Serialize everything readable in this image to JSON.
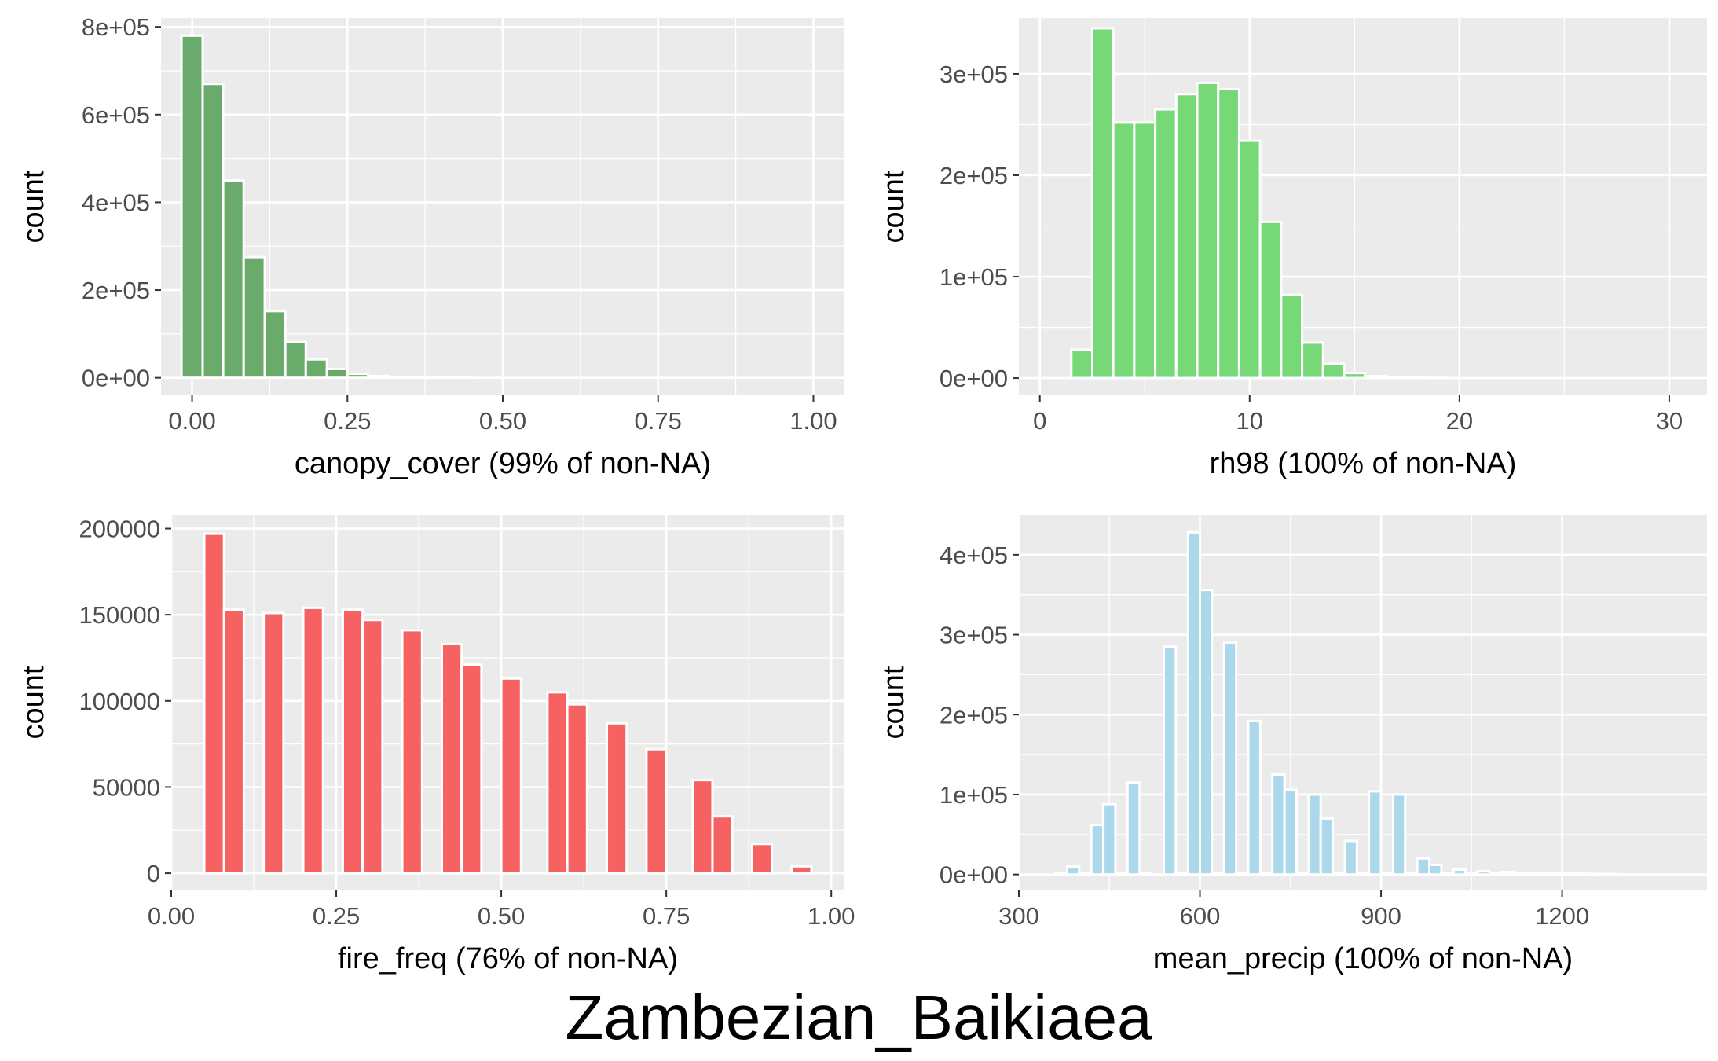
{
  "figure": {
    "title": "Zambezian_Baikiaea"
  },
  "chart_data": [
    {
      "type": "bar",
      "name": "canopy-cover",
      "xlabel": "canopy_cover (99% of non-NA)",
      "ylabel": "count",
      "xlim": [
        -0.05,
        1.05
      ],
      "ylim": [
        -40000,
        820000
      ],
      "xticks": [
        0.0,
        0.25,
        0.5,
        0.75,
        1.0
      ],
      "xtick_labels": [
        "0.00",
        "0.25",
        "0.50",
        "0.75",
        "1.00"
      ],
      "yticks": [
        0,
        200000,
        400000,
        600000,
        800000
      ],
      "ytick_labels": [
        "0e+00",
        "2e+05",
        "4e+05",
        "6e+05",
        "8e+05"
      ],
      "grid": true,
      "fill_color": "#6aaa6a",
      "bins": [
        {
          "x0": -0.017,
          "x1": 0.017,
          "count": 780000
        },
        {
          "x0": 0.017,
          "x1": 0.05,
          "count": 670000
        },
        {
          "x0": 0.05,
          "x1": 0.083,
          "count": 450000
        },
        {
          "x0": 0.083,
          "x1": 0.117,
          "count": 275000
        },
        {
          "x0": 0.117,
          "x1": 0.15,
          "count": 152000
        },
        {
          "x0": 0.15,
          "x1": 0.183,
          "count": 82000
        },
        {
          "x0": 0.183,
          "x1": 0.217,
          "count": 42000
        },
        {
          "x0": 0.217,
          "x1": 0.25,
          "count": 20000
        },
        {
          "x0": 0.25,
          "x1": 0.283,
          "count": 9000
        },
        {
          "x0": 0.283,
          "x1": 0.317,
          "count": 4000
        },
        {
          "x0": 0.317,
          "x1": 0.35,
          "count": 2000
        },
        {
          "x0": 0.35,
          "x1": 0.383,
          "count": 1000
        },
        {
          "x0": 0.383,
          "x1": 0.417,
          "count": 500
        },
        {
          "x0": 0.417,
          "x1": 0.45,
          "count": 300
        }
      ]
    },
    {
      "type": "bar",
      "name": "rh98",
      "xlabel": "rh98 (100% of non-NA)",
      "ylabel": "count",
      "xlim": [
        -1,
        31.8
      ],
      "ylim": [
        -17000,
        355000
      ],
      "xticks": [
        0,
        10,
        20,
        30
      ],
      "xtick_labels": [
        "0",
        "10",
        "20",
        "30"
      ],
      "yticks": [
        0,
        100000,
        200000,
        300000
      ],
      "ytick_labels": [
        "0e+00",
        "1e+05",
        "2e+05",
        "3e+05"
      ],
      "grid": true,
      "fill_color": "#77d877",
      "bins": [
        {
          "x0": 1.5,
          "x1": 2.5,
          "count": 28000
        },
        {
          "x0": 2.5,
          "x1": 3.5,
          "count": 345000
        },
        {
          "x0": 3.5,
          "x1": 4.5,
          "count": 252000
        },
        {
          "x0": 4.5,
          "x1": 5.5,
          "count": 252000
        },
        {
          "x0": 5.5,
          "x1": 6.5,
          "count": 265000
        },
        {
          "x0": 6.5,
          "x1": 7.5,
          "count": 280000
        },
        {
          "x0": 7.5,
          "x1": 8.5,
          "count": 291000
        },
        {
          "x0": 8.5,
          "x1": 9.5,
          "count": 285000
        },
        {
          "x0": 9.5,
          "x1": 10.5,
          "count": 234000
        },
        {
          "x0": 10.5,
          "x1": 11.5,
          "count": 154000
        },
        {
          "x0": 11.5,
          "x1": 12.5,
          "count": 82000
        },
        {
          "x0": 12.5,
          "x1": 13.5,
          "count": 35000
        },
        {
          "x0": 13.5,
          "x1": 14.5,
          "count": 14000
        },
        {
          "x0": 14.5,
          "x1": 15.5,
          "count": 5000
        },
        {
          "x0": 15.5,
          "x1": 16.5,
          "count": 2000
        },
        {
          "x0": 16.5,
          "x1": 17.5,
          "count": 1000
        },
        {
          "x0": 17.5,
          "x1": 18.5,
          "count": 500
        },
        {
          "x0": 18.5,
          "x1": 19.5,
          "count": 300
        }
      ]
    },
    {
      "type": "bar",
      "name": "fire-freq",
      "xlabel": "fire_freq (76% of non-NA)",
      "ylabel": "count",
      "xlim": [
        0,
        1.02
      ],
      "ylim": [
        -10000,
        208000
      ],
      "xticks": [
        0.0,
        0.25,
        0.5,
        0.75,
        1.0
      ],
      "xtick_labels": [
        "0.00",
        "0.25",
        "0.50",
        "0.75",
        "1.00"
      ],
      "yticks": [
        0,
        50000,
        100000,
        150000,
        200000
      ],
      "ytick_labels": [
        "0",
        "50000",
        "100000",
        "150000",
        "200000"
      ],
      "grid": true,
      "fill_color": "#f66161",
      "bins": [
        {
          "x0": 0.05,
          "x1": 0.08,
          "count": 197000
        },
        {
          "x0": 0.08,
          "x1": 0.11,
          "count": 153000
        },
        {
          "x0": 0.14,
          "x1": 0.17,
          "count": 151000
        },
        {
          "x0": 0.2,
          "x1": 0.23,
          "count": 154000
        },
        {
          "x0": 0.26,
          "x1": 0.29,
          "count": 153000
        },
        {
          "x0": 0.29,
          "x1": 0.32,
          "count": 147000
        },
        {
          "x0": 0.35,
          "x1": 0.38,
          "count": 141000
        },
        {
          "x0": 0.41,
          "x1": 0.44,
          "count": 133000
        },
        {
          "x0": 0.44,
          "x1": 0.47,
          "count": 121000
        },
        {
          "x0": 0.5,
          "x1": 0.53,
          "count": 113000
        },
        {
          "x0": 0.57,
          "x1": 0.6,
          "count": 105000
        },
        {
          "x0": 0.6,
          "x1": 0.63,
          "count": 98000
        },
        {
          "x0": 0.66,
          "x1": 0.69,
          "count": 87000
        },
        {
          "x0": 0.72,
          "x1": 0.75,
          "count": 72000
        },
        {
          "x0": 0.79,
          "x1": 0.82,
          "count": 54000
        },
        {
          "x0": 0.82,
          "x1": 0.85,
          "count": 33000
        },
        {
          "x0": 0.88,
          "x1": 0.91,
          "count": 17000
        },
        {
          "x0": 0.94,
          "x1": 0.97,
          "count": 4000
        }
      ]
    },
    {
      "type": "bar",
      "name": "mean-precip",
      "xlabel": "mean_precip (100% of non-NA)",
      "ylabel": "count",
      "xlim": [
        300,
        1440
      ],
      "ylim": [
        -20000,
        450000
      ],
      "xticks": [
        300,
        600,
        900,
        1200
      ],
      "xtick_labels": [
        "300",
        "600",
        "900",
        "1200"
      ],
      "yticks": [
        0,
        100000,
        200000,
        300000,
        400000
      ],
      "ytick_labels": [
        "0e+00",
        "1e+05",
        "2e+05",
        "3e+05",
        "4e+05"
      ],
      "grid": true,
      "fill_color": "#acd8ec",
      "bins": [
        {
          "x0": 360,
          "x1": 380,
          "count": 2000
        },
        {
          "x0": 380,
          "x1": 400,
          "count": 10000
        },
        {
          "x0": 400,
          "x1": 420,
          "count": 2000
        },
        {
          "x0": 420,
          "x1": 440,
          "count": 62000
        },
        {
          "x0": 440,
          "x1": 460,
          "count": 88000
        },
        {
          "x0": 460,
          "x1": 480,
          "count": 2000
        },
        {
          "x0": 480,
          "x1": 500,
          "count": 115000
        },
        {
          "x0": 500,
          "x1": 520,
          "count": 2000
        },
        {
          "x0": 540,
          "x1": 560,
          "count": 285000
        },
        {
          "x0": 560,
          "x1": 580,
          "count": 2000
        },
        {
          "x0": 580,
          "x1": 600,
          "count": 428000
        },
        {
          "x0": 600,
          "x1": 620,
          "count": 356000
        },
        {
          "x0": 620,
          "x1": 640,
          "count": 2000
        },
        {
          "x0": 640,
          "x1": 660,
          "count": 290000
        },
        {
          "x0": 660,
          "x1": 680,
          "count": 2000
        },
        {
          "x0": 680,
          "x1": 700,
          "count": 192000
        },
        {
          "x0": 700,
          "x1": 720,
          "count": 2000
        },
        {
          "x0": 720,
          "x1": 740,
          "count": 125000
        },
        {
          "x0": 740,
          "x1": 760,
          "count": 106000
        },
        {
          "x0": 760,
          "x1": 780,
          "count": 2000
        },
        {
          "x0": 780,
          "x1": 800,
          "count": 100000
        },
        {
          "x0": 800,
          "x1": 820,
          "count": 70000
        },
        {
          "x0": 820,
          "x1": 840,
          "count": 2000
        },
        {
          "x0": 840,
          "x1": 860,
          "count": 42000
        },
        {
          "x0": 860,
          "x1": 880,
          "count": 2000
        },
        {
          "x0": 880,
          "x1": 900,
          "count": 104000
        },
        {
          "x0": 900,
          "x1": 920,
          "count": 2000
        },
        {
          "x0": 920,
          "x1": 940,
          "count": 100000
        },
        {
          "x0": 940,
          "x1": 960,
          "count": 2000
        },
        {
          "x0": 960,
          "x1": 980,
          "count": 20000
        },
        {
          "x0": 980,
          "x1": 1000,
          "count": 12000
        },
        {
          "x0": 1000,
          "x1": 1020,
          "count": 2000
        },
        {
          "x0": 1020,
          "x1": 1040,
          "count": 6000
        },
        {
          "x0": 1040,
          "x1": 1060,
          "count": 2000
        },
        {
          "x0": 1060,
          "x1": 1080,
          "count": 4000
        },
        {
          "x0": 1080,
          "x1": 1100,
          "count": 2000
        },
        {
          "x0": 1100,
          "x1": 1120,
          "count": 3000
        },
        {
          "x0": 1120,
          "x1": 1140,
          "count": 2000
        },
        {
          "x0": 1140,
          "x1": 1160,
          "count": 2000
        },
        {
          "x0": 1160,
          "x1": 1180,
          "count": 1500
        },
        {
          "x0": 1180,
          "x1": 1200,
          "count": 1500
        },
        {
          "x0": 1200,
          "x1": 1220,
          "count": 1000
        },
        {
          "x0": 1220,
          "x1": 1240,
          "count": 1000
        },
        {
          "x0": 1240,
          "x1": 1260,
          "count": 800
        },
        {
          "x0": 1260,
          "x1": 1280,
          "count": 600
        },
        {
          "x0": 1280,
          "x1": 1300,
          "count": 400
        }
      ]
    }
  ]
}
